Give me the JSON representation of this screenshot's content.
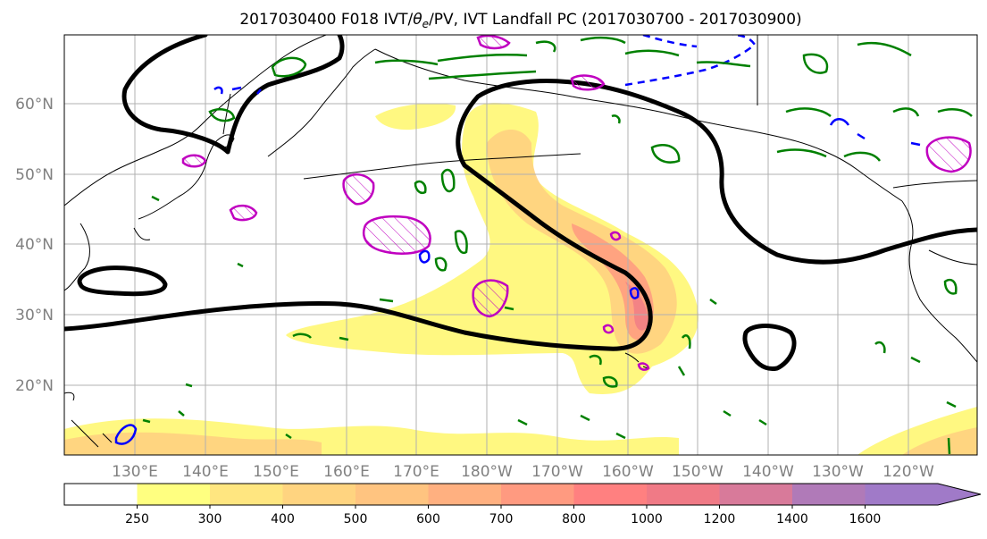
{
  "title_main": "2017030400 F018 IVT/",
  "title_theta": "θ",
  "title_sub": "e",
  "title_rest": "/PV, IVT Landfall PC (2017030700 - 2017030900)",
  "lat_labels": [
    "20°N",
    "30°N",
    "40°N",
    "50°N",
    "60°N"
  ],
  "lon_labels": [
    "130°E",
    "140°E",
    "150°E",
    "160°E",
    "170°E",
    "180°W",
    "170°W",
    "160°W",
    "150°W",
    "140°W",
    "130°W",
    "120°W"
  ],
  "colorbar": {
    "levels": [
      "250",
      "300",
      "400",
      "500",
      "600",
      "700",
      "800",
      "1000",
      "1200",
      "1400",
      "1600"
    ],
    "colors": [
      "#ffffff",
      "#ffff80",
      "#ffe680",
      "#ffd480",
      "#ffc480",
      "#ffb080",
      "#ff9a80",
      "#ff8080",
      "#f07a86",
      "#d87a9a",
      "#b07ab8",
      "#a07ac8"
    ]
  },
  "map_colors": {
    "pv_contour": "#008000",
    "theta_pos": "#c000c0",
    "theta_neg": "#0000ff",
    "pc_contour": "#000000",
    "ivt_low": "#fff87a",
    "ivt_mid": "#ffd080",
    "ivt_high": "#ff9a80",
    "ivt_peak": "#f07a86"
  }
}
